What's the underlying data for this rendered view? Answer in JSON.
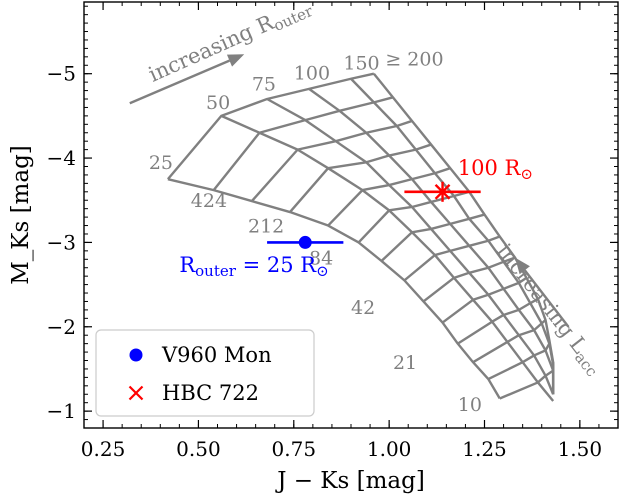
{
  "chart_data": {
    "type": "scatter",
    "xlabel": "J − Ks [mag]",
    "ylabel": "M_Ks [mag]",
    "xlim": [
      0.2,
      1.6
    ],
    "ylim": [
      -0.8,
      -5.85
    ],
    "y_inverted": true,
    "x_ticks": [
      0.25,
      0.5,
      0.75,
      1.0,
      1.25,
      1.5
    ],
    "x_tick_labels": [
      "0.25",
      "0.50",
      "0.75",
      "1.00",
      "1.25",
      "1.50"
    ],
    "y_ticks": [
      -1,
      -2,
      -3,
      -4,
      -5
    ],
    "y_tick_labels": [
      "−1",
      "−2",
      "−3",
      "−4",
      "−5"
    ],
    "grid": false,
    "legend_position": "lower-left",
    "model_grid": {
      "color": "#808080",
      "r_outer_values": [
        25,
        50,
        75,
        100,
        150,
        200
      ],
      "r_outer_lines": [
        [
          [
            0.42,
            -3.75
          ],
          [
            0.54,
            -3.62
          ],
          [
            0.64,
            -3.49
          ],
          [
            0.74,
            -3.36
          ],
          [
            0.84,
            -3.2
          ],
          [
            0.92,
            -3.0
          ],
          [
            0.98,
            -2.78
          ],
          [
            1.04,
            -2.55
          ],
          [
            1.09,
            -2.3
          ],
          [
            1.14,
            -2.05
          ],
          [
            1.18,
            -1.8
          ],
          [
            1.22,
            -1.58
          ],
          [
            1.26,
            -1.38
          ],
          [
            1.29,
            -1.15
          ]
        ],
        [
          [
            0.56,
            -4.5
          ],
          [
            0.66,
            -4.3
          ],
          [
            0.76,
            -4.1
          ],
          [
            0.84,
            -3.88
          ],
          [
            0.93,
            -3.62
          ],
          [
            1.0,
            -3.38
          ],
          [
            1.06,
            -3.12
          ],
          [
            1.12,
            -2.85
          ],
          [
            1.17,
            -2.58
          ],
          [
            1.22,
            -2.32
          ],
          [
            1.27,
            -2.06
          ],
          [
            1.31,
            -1.82
          ],
          [
            1.35,
            -1.58
          ],
          [
            1.39,
            -1.34
          ],
          [
            1.43,
            -1.12
          ]
        ],
        [
          [
            0.68,
            -4.7
          ],
          [
            0.78,
            -4.45
          ],
          [
            0.86,
            -4.2
          ],
          [
            0.94,
            -3.95
          ],
          [
            1.0,
            -3.68
          ],
          [
            1.06,
            -3.42
          ],
          [
            1.11,
            -3.16
          ],
          [
            1.16,
            -2.9
          ],
          [
            1.21,
            -2.64
          ],
          [
            1.26,
            -2.38
          ],
          [
            1.3,
            -2.14
          ],
          [
            1.34,
            -1.9
          ],
          [
            1.38,
            -1.66
          ],
          [
            1.41,
            -1.42
          ],
          [
            1.43,
            -1.2
          ]
        ],
        [
          [
            0.79,
            -4.82
          ],
          [
            0.87,
            -4.56
          ],
          [
            0.94,
            -4.3
          ],
          [
            1.0,
            -4.03
          ],
          [
            1.06,
            -3.75
          ],
          [
            1.11,
            -3.48
          ],
          [
            1.16,
            -3.22
          ],
          [
            1.21,
            -2.96
          ],
          [
            1.26,
            -2.7
          ],
          [
            1.3,
            -2.45
          ],
          [
            1.34,
            -2.2
          ],
          [
            1.38,
            -1.96
          ],
          [
            1.41,
            -1.72
          ],
          [
            1.43,
            -1.48
          ],
          [
            1.43,
            -1.2
          ]
        ],
        [
          [
            0.9,
            -4.94
          ],
          [
            0.96,
            -4.66
          ],
          [
            1.02,
            -4.38
          ],
          [
            1.07,
            -4.1
          ],
          [
            1.12,
            -3.82
          ],
          [
            1.17,
            -3.55
          ],
          [
            1.21,
            -3.28
          ],
          [
            1.26,
            -3.02
          ],
          [
            1.3,
            -2.77
          ],
          [
            1.34,
            -2.52
          ],
          [
            1.37,
            -2.28
          ],
          [
            1.4,
            -2.04
          ],
          [
            1.42,
            -1.8
          ],
          [
            1.43,
            -1.55
          ],
          [
            1.43,
            -1.2
          ]
        ],
        [
          [
            0.96,
            -5.0
          ],
          [
            1.01,
            -4.72
          ],
          [
            1.06,
            -4.44
          ],
          [
            1.11,
            -4.16
          ],
          [
            1.16,
            -3.88
          ],
          [
            1.21,
            -3.6
          ],
          [
            1.25,
            -3.33
          ],
          [
            1.29,
            -3.07
          ],
          [
            1.33,
            -2.82
          ],
          [
            1.36,
            -2.58
          ],
          [
            1.39,
            -2.33
          ],
          [
            1.41,
            -2.08
          ],
          [
            1.42,
            -1.84
          ],
          [
            1.43,
            -1.58
          ],
          [
            1.43,
            -1.2
          ]
        ]
      ],
      "l_acc_lines": [
        [
          [
            0.42,
            -3.75
          ],
          [
            0.56,
            -4.5
          ],
          [
            0.68,
            -4.7
          ],
          [
            0.79,
            -4.82
          ],
          [
            0.9,
            -4.94
          ],
          [
            0.96,
            -5.0
          ]
        ],
        [
          [
            0.54,
            -3.62
          ],
          [
            0.66,
            -4.3
          ],
          [
            0.78,
            -4.45
          ],
          [
            0.87,
            -4.56
          ],
          [
            0.96,
            -4.66
          ],
          [
            1.01,
            -4.72
          ]
        ],
        [
          [
            0.64,
            -3.49
          ],
          [
            0.76,
            -4.1
          ],
          [
            0.86,
            -4.2
          ],
          [
            0.94,
            -4.3
          ],
          [
            1.02,
            -4.38
          ],
          [
            1.06,
            -4.44
          ]
        ],
        [
          [
            0.74,
            -3.36
          ],
          [
            0.84,
            -3.88
          ],
          [
            0.94,
            -3.95
          ],
          [
            1.0,
            -4.03
          ],
          [
            1.07,
            -4.1
          ],
          [
            1.11,
            -4.16
          ]
        ],
        [
          [
            0.84,
            -3.2
          ],
          [
            0.93,
            -3.62
          ],
          [
            1.0,
            -3.68
          ],
          [
            1.06,
            -3.75
          ],
          [
            1.12,
            -3.82
          ],
          [
            1.16,
            -3.88
          ]
        ],
        [
          [
            0.92,
            -3.0
          ],
          [
            1.0,
            -3.38
          ],
          [
            1.06,
            -3.42
          ],
          [
            1.11,
            -3.48
          ],
          [
            1.17,
            -3.55
          ],
          [
            1.21,
            -3.6
          ]
        ],
        [
          [
            0.98,
            -2.78
          ],
          [
            1.06,
            -3.12
          ],
          [
            1.11,
            -3.16
          ],
          [
            1.16,
            -3.22
          ],
          [
            1.21,
            -3.28
          ],
          [
            1.25,
            -3.33
          ]
        ],
        [
          [
            1.04,
            -2.55
          ],
          [
            1.12,
            -2.85
          ],
          [
            1.16,
            -2.9
          ],
          [
            1.21,
            -2.96
          ],
          [
            1.26,
            -3.02
          ],
          [
            1.29,
            -3.07
          ]
        ],
        [
          [
            1.09,
            -2.3
          ],
          [
            1.17,
            -2.58
          ],
          [
            1.21,
            -2.64
          ],
          [
            1.26,
            -2.7
          ],
          [
            1.3,
            -2.77
          ],
          [
            1.33,
            -2.82
          ]
        ],
        [
          [
            1.14,
            -2.05
          ],
          [
            1.22,
            -2.32
          ],
          [
            1.26,
            -2.38
          ],
          [
            1.3,
            -2.45
          ],
          [
            1.34,
            -2.52
          ],
          [
            1.36,
            -2.58
          ]
        ],
        [
          [
            1.18,
            -1.8
          ],
          [
            1.27,
            -2.06
          ],
          [
            1.3,
            -2.14
          ],
          [
            1.34,
            -2.2
          ],
          [
            1.37,
            -2.28
          ],
          [
            1.39,
            -2.33
          ]
        ],
        [
          [
            1.22,
            -1.58
          ],
          [
            1.31,
            -1.82
          ],
          [
            1.34,
            -1.9
          ],
          [
            1.38,
            -1.96
          ],
          [
            1.4,
            -2.04
          ],
          [
            1.41,
            -2.08
          ]
        ],
        [
          [
            1.26,
            -1.38
          ],
          [
            1.35,
            -1.58
          ],
          [
            1.38,
            -1.66
          ],
          [
            1.41,
            -1.72
          ],
          [
            1.42,
            -1.8
          ],
          [
            1.42,
            -1.84
          ]
        ],
        [
          [
            1.29,
            -1.15
          ],
          [
            1.39,
            -1.34
          ],
          [
            1.41,
            -1.42
          ],
          [
            1.43,
            -1.48
          ],
          [
            1.43,
            -1.55
          ],
          [
            1.43,
            -1.58
          ]
        ]
      ]
    },
    "grid_labels": [
      {
        "text": "25",
        "x": 0.37,
        "y": -3.87
      },
      {
        "text": "50",
        "x": 0.52,
        "y": -4.58
      },
      {
        "text": "75",
        "x": 0.64,
        "y": -4.8
      },
      {
        "text": "100",
        "x": 0.75,
        "y": -4.93
      },
      {
        "text": "150",
        "x": 0.88,
        "y": -5.05
      },
      {
        "text": "≥ 200",
        "x": 0.99,
        "y": -5.1
      },
      {
        "text": "424",
        "x": 0.48,
        "y": -3.42
      },
      {
        "text": "212",
        "x": 0.63,
        "y": -3.12
      },
      {
        "text": "84",
        "x": 0.79,
        "y": -2.74
      },
      {
        "text": "42",
        "x": 0.9,
        "y": -2.15
      },
      {
        "text": "21",
        "x": 1.01,
        "y": -1.5
      },
      {
        "text": "10",
        "x": 1.18,
        "y": -1.0
      }
    ],
    "annotations": [
      {
        "text": "increasing R",
        "sub": "outer",
        "color": "#808080",
        "x": 0.38,
        "y": -4.9,
        "rotation": -24
      },
      {
        "text": "increasing L",
        "sub": "acc",
        "color": "#808080",
        "x": 1.28,
        "y": -2.9,
        "rotation": 52
      },
      {
        "text": "100 R",
        "sub": "⊙",
        "color": "#ff0000",
        "x": 1.18,
        "y": -3.8
      },
      {
        "text": "R",
        "sub": "outer",
        "suffix": " = 25 R",
        "sub2": "⊙",
        "color": "#0000ff",
        "x": 0.45,
        "y": -2.65
      }
    ],
    "series": [
      {
        "name": "V960 Mon",
        "color": "#0000ff",
        "marker": "circle",
        "x": 0.78,
        "y": -3.0,
        "xerr": 0.1
      },
      {
        "name": "HBC 722",
        "color": "#ff0000",
        "marker": "x",
        "x": 1.14,
        "y": -3.6,
        "xerr": 0.1
      }
    ]
  }
}
